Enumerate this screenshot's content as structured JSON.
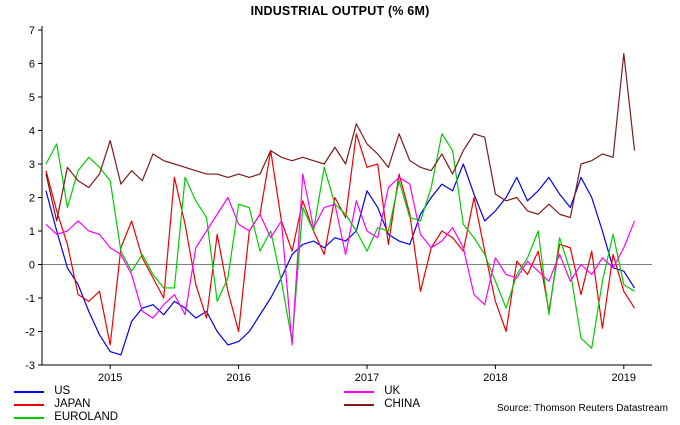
{
  "title": "INDUSTRIAL OUTPUT (% 6M)",
  "source": "Source: Thomson Reuters Datastream",
  "legend": {
    "items": [
      {
        "label": "US",
        "color": "#0000ee"
      },
      {
        "label": "JAPAN",
        "color": "#ee0000"
      },
      {
        "label": "EUROLAND",
        "color": "#00cc00"
      },
      {
        "label": "UK",
        "color": "#ff00ff"
      },
      {
        "label": "CHINA",
        "color": "#7d1a1a"
      }
    ]
  },
  "chart_data": {
    "type": "line",
    "title": "INDUSTRIAL OUTPUT (% 6M)",
    "x_start": "2014-07",
    "x_end": "2019-02",
    "x_frequency": "monthly",
    "x_tick_labels": [
      "2015",
      "2016",
      "2017",
      "2018",
      "2019"
    ],
    "x_tick_indices": [
      6,
      18,
      30,
      42,
      54
    ],
    "ylim": [
      -3,
      7
    ],
    "ytick_step": 1,
    "zero_line": true,
    "grid": false,
    "legend_position": "bottom",
    "series": [
      {
        "name": "US",
        "color": "#0000ee",
        "values": [
          2.2,
          1.0,
          -0.1,
          -0.6,
          -1.4,
          -2.1,
          -2.6,
          -2.7,
          -1.7,
          -1.3,
          -1.2,
          -1.5,
          -1.1,
          -1.3,
          -1.6,
          -1.4,
          -2.0,
          -2.4,
          -2.3,
          -2.0,
          -1.5,
          -1.0,
          -0.4,
          0.3,
          0.6,
          0.7,
          0.5,
          0.8,
          0.7,
          1.0,
          2.2,
          1.7,
          0.9,
          0.7,
          0.6,
          1.5,
          2.0,
          2.4,
          2.2,
          3.0,
          2.1,
          1.3,
          1.6,
          2.0,
          2.6,
          1.9,
          2.2,
          2.6,
          2.1,
          1.7,
          2.6,
          2.0,
          1.0,
          -0.1,
          -0.2,
          -0.7
        ]
      },
      {
        "name": "JAPAN",
        "color": "#ee0000",
        "values": [
          2.8,
          1.6,
          0.6,
          -0.9,
          -1.1,
          -0.8,
          -2.4,
          0.5,
          1.3,
          0.2,
          -0.4,
          -1.0,
          2.6,
          1.2,
          -0.6,
          -1.6,
          0.9,
          -0.8,
          -2.0,
          1.0,
          1.5,
          3.4,
          1.3,
          0.4,
          1.9,
          1.0,
          0.3,
          2.0,
          1.4,
          3.9,
          2.9,
          3.0,
          0.6,
          2.7,
          1.5,
          -0.8,
          0.5,
          1.0,
          0.8,
          0.4,
          2.0,
          0.4,
          -1.1,
          -2.0,
          0.1,
          -0.3,
          0.4,
          -1.4,
          0.6,
          0.5,
          -0.9,
          0.4,
          -1.9,
          0.3,
          -0.8,
          -1.3
        ]
      },
      {
        "name": "EUROLAND",
        "color": "#00cc00",
        "values": [
          3.0,
          3.6,
          1.7,
          2.8,
          3.2,
          2.9,
          2.5,
          0.4,
          -0.2,
          0.3,
          -0.3,
          -0.7,
          -0.7,
          2.6,
          1.9,
          1.4,
          -1.1,
          -0.4,
          1.8,
          1.7,
          0.4,
          1.0,
          -0.5,
          -2.3,
          1.7,
          1.0,
          2.9,
          1.8,
          1.5,
          1.0,
          0.4,
          1.1,
          1.0,
          2.5,
          1.4,
          1.3,
          2.3,
          3.9,
          3.4,
          1.2,
          0.8,
          0.3,
          -0.5,
          -1.3,
          -0.3,
          0.2,
          1.0,
          -1.5,
          0.8,
          -0.2,
          -2.2,
          -2.5,
          -0.5,
          0.9,
          -0.6,
          -0.8
        ]
      },
      {
        "name": "UK",
        "color": "#ff00ff",
        "values": [
          1.2,
          0.9,
          1.0,
          1.3,
          1.0,
          0.9,
          0.5,
          0.3,
          -0.3,
          -1.4,
          -1.6,
          -1.2,
          -0.9,
          -1.5,
          0.5,
          1.0,
          1.5,
          2.0,
          1.2,
          1.0,
          1.5,
          0.8,
          1.3,
          -2.4,
          2.7,
          1.1,
          1.7,
          1.8,
          0.3,
          1.9,
          1.0,
          0.8,
          2.3,
          2.6,
          2.4,
          0.9,
          0.5,
          0.7,
          1.1,
          0.5,
          -0.9,
          -1.2,
          0.2,
          -0.3,
          -0.4,
          0.1,
          -0.2,
          -0.5,
          0.3,
          -0.5,
          0.0,
          -0.3,
          0.2,
          -0.1,
          0.5,
          1.3
        ]
      },
      {
        "name": "CHINA",
        "color": "#7d1a1a",
        "values": [
          2.7,
          1.3,
          2.9,
          2.5,
          2.3,
          2.7,
          3.7,
          2.4,
          2.8,
          2.5,
          3.3,
          3.1,
          3.0,
          2.9,
          2.8,
          2.7,
          2.7,
          2.6,
          2.7,
          2.6,
          2.7,
          3.4,
          3.2,
          3.1,
          3.2,
          3.1,
          3.0,
          3.5,
          3.0,
          4.2,
          3.6,
          3.3,
          2.9,
          3.9,
          3.1,
          2.9,
          2.8,
          3.3,
          2.7,
          3.4,
          3.9,
          3.8,
          2.1,
          1.9,
          2.0,
          1.6,
          1.5,
          1.8,
          1.5,
          1.4,
          3.0,
          3.1,
          3.3,
          3.2,
          6.3,
          3.4
        ]
      }
    ]
  }
}
